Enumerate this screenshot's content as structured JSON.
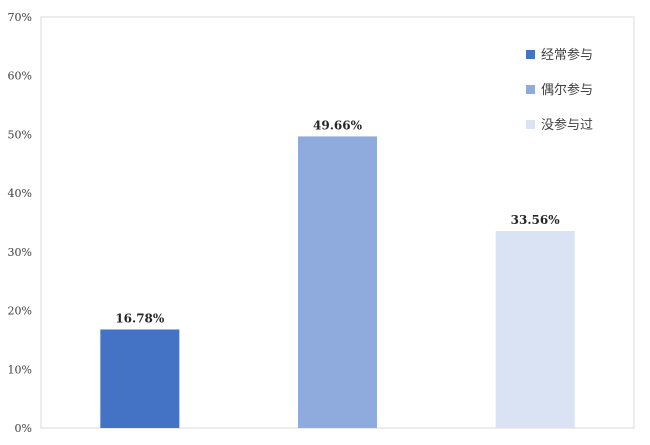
{
  "chart_data": {
    "type": "bar",
    "categories": [
      "经常参与",
      "偶尔参与",
      "没参与过"
    ],
    "values": [
      16.78,
      49.66,
      33.56
    ],
    "data_labels": [
      "16.78%",
      "49.66%",
      "33.56%"
    ],
    "colors": [
      "#4472c4",
      "#8faadc",
      "#dae3f3"
    ],
    "ylim": [
      0,
      70
    ],
    "yticks": [
      "0%",
      "10%",
      "20%",
      "30%",
      "40%",
      "50%",
      "60%",
      "70%"
    ],
    "grid": false,
    "legend_position": "top-right",
    "title": "",
    "xlabel": "",
    "ylabel": ""
  }
}
